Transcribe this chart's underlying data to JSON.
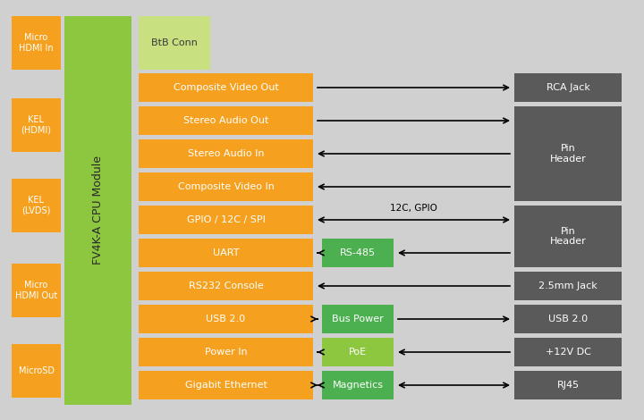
{
  "bg_color": "#d0d0d0",
  "orange": "#F5A11F",
  "green_cpu": "#8DC63F",
  "green_btb": "#C8E080",
  "green_dark": "#4CAF50",
  "green_poe": "#8DC63F",
  "dark_gray": "#5A5A5A",
  "white": "#FFFFFF",
  "black": "#000000",
  "fig_w": 7.2,
  "fig_h": 4.7,
  "dpi": 100,
  "cpu_label": "FV4K-A CPU Module",
  "btb_label": "BtB Conn",
  "gpio_label": "12C, GPIO",
  "left_connectors": [
    {
      "label": "Micro\nHDMI In"
    },
    {
      "label": "KEL\n(HDMI)"
    },
    {
      "label": "KEL\n(LVDS)"
    },
    {
      "label": "Micro\nHDMI Out"
    },
    {
      "label": "MicroSD"
    }
  ],
  "center_rows": [
    "Composite Video Out",
    "Stereo Audio Out",
    "Stereo Audio In",
    "Composite Video In",
    "GPIO / 12C / SPI",
    "UART",
    "RS232 Console",
    "USB 2.0",
    "Power In",
    "Gigabit Ethernet"
  ],
  "mid_boxes": [
    {
      "label": "RS-485",
      "row": 5,
      "color": "#4CAF50"
    },
    {
      "label": "Bus Power",
      "row": 7,
      "color": "#4CAF50"
    },
    {
      "label": "PoE",
      "row": 8,
      "color": "#8DC63F"
    },
    {
      "label": "Magnetics",
      "row": 9,
      "color": "#4CAF50"
    }
  ],
  "right_single": [
    {
      "label": "RCA Jack",
      "row": 0
    },
    {
      "label": "2.5mm Jack",
      "row": 6
    },
    {
      "label": "USB 2.0",
      "row": 7
    },
    {
      "label": "+12V DC",
      "row": 8
    },
    {
      "label": "RJ45",
      "row": 9
    }
  ],
  "right_span": [
    {
      "label": "Pin\nHeader",
      "rows": [
        1,
        2,
        3
      ]
    },
    {
      "label": "Pin\nHeader",
      "rows": [
        4,
        5
      ]
    }
  ]
}
